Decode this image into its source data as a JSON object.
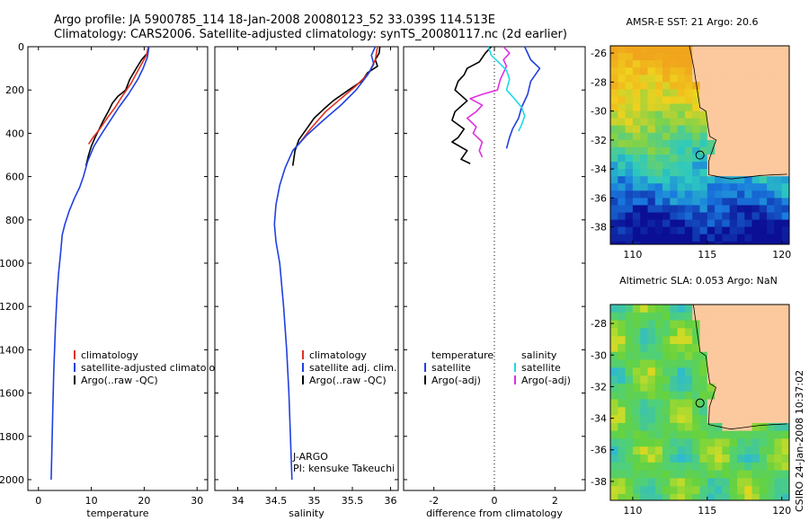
{
  "header": {
    "line1": "Argo profile: JA 5900785_114 18-Jan-2008 20080123_52 33.039S 114.513E",
    "line2": "Climatology: CARS2006. Satellite-adjusted climatology: synTS_20080117.nc (2d earlier)"
  },
  "side_text": "CSIRO 24-Jan-2008 10:37:02",
  "chart_data": [
    {
      "type": "line",
      "id": "temperature-panel",
      "xlabel": "temperature",
      "xlim": [
        -2,
        32
      ],
      "ylim": [
        0,
        2050
      ],
      "xticks": [
        0,
        10,
        20,
        30
      ],
      "yticks": [
        0,
        200,
        400,
        600,
        800,
        1000,
        1200,
        1400,
        1600,
        1800,
        2000
      ],
      "y_reversed": true,
      "legend": {
        "position": "lower-right",
        "entries": [
          {
            "label": "climatology",
            "color": "#e0301e"
          },
          {
            "label": "satellite-adjusted climatology",
            "color": "#2040e0"
          },
          {
            "label": "Argo(..raw -QC)",
            "color": "#000000"
          }
        ]
      },
      "series": [
        {
          "color": "#000000",
          "points": [
            [
              20.8,
              0
            ],
            [
              20.6,
              30
            ],
            [
              19.5,
              60
            ],
            [
              18.5,
              100
            ],
            [
              17.3,
              150
            ],
            [
              16.5,
              200
            ],
            [
              15.0,
              230
            ],
            [
              14.0,
              260
            ],
            [
              13.2,
              300
            ],
            [
              12.3,
              340
            ],
            [
              11.5,
              380
            ],
            [
              10.7,
              420
            ],
            [
              10.0,
              460
            ],
            [
              9.5,
              500
            ],
            [
              9.0,
              550
            ]
          ]
        },
        {
          "color": "#e0301e",
          "points": [
            [
              20.8,
              0
            ],
            [
              20.4,
              40
            ],
            [
              19.5,
              80
            ],
            [
              18.6,
              120
            ],
            [
              17.5,
              170
            ],
            [
              15.8,
              230
            ],
            [
              14.5,
              280
            ],
            [
              13.0,
              330
            ],
            [
              11.6,
              380
            ],
            [
              10.3,
              420
            ],
            [
              9.5,
              450
            ]
          ]
        },
        {
          "color": "#2040e0",
          "points": [
            [
              20.9,
              0
            ],
            [
              20.6,
              50
            ],
            [
              19.8,
              100
            ],
            [
              18.8,
              150
            ],
            [
              17.0,
              220
            ],
            [
              15.2,
              280
            ],
            [
              13.6,
              340
            ],
            [
              12.0,
              400
            ],
            [
              10.5,
              460
            ],
            [
              9.3,
              530
            ],
            [
              8.5,
              600
            ],
            [
              7.8,
              650
            ],
            [
              6.8,
              700
            ],
            [
              5.8,
              760
            ],
            [
              5.0,
              820
            ],
            [
              4.5,
              870
            ],
            [
              4.2,
              950
            ],
            [
              3.8,
              1050
            ],
            [
              3.5,
              1150
            ],
            [
              3.2,
              1300
            ],
            [
              2.9,
              1500
            ],
            [
              2.7,
              1700
            ],
            [
              2.5,
              1900
            ],
            [
              2.4,
              2000
            ]
          ]
        }
      ]
    },
    {
      "type": "line",
      "id": "salinity-panel",
      "xlabel": "salinity",
      "xlim": [
        33.7,
        36.1
      ],
      "ylim": [
        0,
        2050
      ],
      "xticks": [
        34,
        34.5,
        35,
        35.5,
        36
      ],
      "xtick_labels": [
        "34",
        "34.5",
        "35",
        "35.5",
        "36"
      ],
      "y_reversed": true,
      "annotation": [
        "J-ARGO",
        "PI: kensuke Takeuchi"
      ],
      "legend": {
        "position": "lower-right",
        "entries": [
          {
            "label": "climatology",
            "color": "#e0301e"
          },
          {
            "label": "satellite adj. clim.",
            "color": "#2040e0"
          },
          {
            "label": "Argo(..raw -QC)",
            "color": "#000000"
          }
        ]
      },
      "series": [
        {
          "color": "#000000",
          "points": [
            [
              35.86,
              0
            ],
            [
              35.85,
              30
            ],
            [
              35.8,
              60
            ],
            [
              35.83,
              90
            ],
            [
              35.7,
              120
            ],
            [
              35.62,
              160
            ],
            [
              35.45,
              200
            ],
            [
              35.25,
              250
            ],
            [
              35.12,
              290
            ],
            [
              35.0,
              330
            ],
            [
              34.9,
              380
            ],
            [
              34.8,
              430
            ],
            [
              34.75,
              480
            ],
            [
              34.72,
              550
            ]
          ]
        },
        {
          "color": "#e0301e",
          "points": [
            [
              35.83,
              0
            ],
            [
              35.8,
              60
            ],
            [
              35.72,
              120
            ],
            [
              35.55,
              180
            ],
            [
              35.35,
              240
            ],
            [
              35.15,
              300
            ],
            [
              34.95,
              380
            ],
            [
              34.8,
              450
            ]
          ]
        },
        {
          "color": "#2040e0",
          "points": [
            [
              35.8,
              0
            ],
            [
              35.75,
              40
            ],
            [
              35.78,
              80
            ],
            [
              35.7,
              130
            ],
            [
              35.55,
              200
            ],
            [
              35.35,
              270
            ],
            [
              35.12,
              340
            ],
            [
              34.9,
              410
            ],
            [
              34.72,
              480
            ],
            [
              34.62,
              560
            ],
            [
              34.55,
              640
            ],
            [
              34.5,
              730
            ],
            [
              34.48,
              820
            ],
            [
              34.5,
              900
            ],
            [
              34.55,
              1000
            ],
            [
              34.6,
              1200
            ],
            [
              34.64,
              1400
            ],
            [
              34.67,
              1600
            ],
            [
              34.69,
              1800
            ],
            [
              34.71,
              2000
            ]
          ]
        }
      ]
    },
    {
      "type": "line",
      "id": "difference-panel",
      "xlabel": "difference from climatology",
      "xlim": [
        -3,
        3
      ],
      "ylim": [
        0,
        2050
      ],
      "xticks": [
        -2,
        0,
        2
      ],
      "y_reversed": true,
      "zero_line": "dotted",
      "legend": {
        "position": "lower-center",
        "entries": [
          {
            "label": "temperature",
            "color": null
          },
          {
            "label": "satellite",
            "color": "#2040e0"
          },
          {
            "label": "Argo(-adj)",
            "color": "#000000"
          },
          {
            "label": "salinity",
            "color": null
          },
          {
            "label": "satellite",
            "color": "#20d8e8"
          },
          {
            "label": "Argo(-adj)",
            "color": "#e030e0"
          }
        ]
      },
      "series": [
        {
          "color": "#000000",
          "points": [
            [
              -0.1,
              0
            ],
            [
              -0.3,
              30
            ],
            [
              -0.5,
              70
            ],
            [
              -0.9,
              100
            ],
            [
              -1.0,
              130
            ],
            [
              -1.2,
              160
            ],
            [
              -1.3,
              200
            ],
            [
              -0.9,
              250
            ],
            [
              -1.3,
              300
            ],
            [
              -1.4,
              340
            ],
            [
              -1.0,
              380
            ],
            [
              -1.2,
              420
            ],
            [
              -1.4,
              440
            ],
            [
              -0.9,
              480
            ],
            [
              -1.1,
              520
            ],
            [
              -0.8,
              540
            ]
          ]
        },
        {
          "color": "#e030e0",
          "points": [
            [
              0.3,
              0
            ],
            [
              0.5,
              30
            ],
            [
              0.3,
              60
            ],
            [
              0.4,
              90
            ],
            [
              0.2,
              150
            ],
            [
              0.1,
              200
            ],
            [
              -0.4,
              220
            ],
            [
              -0.8,
              240
            ],
            [
              -0.4,
              270
            ],
            [
              -0.6,
              300
            ],
            [
              -0.9,
              330
            ],
            [
              -0.6,
              370
            ],
            [
              -0.7,
              400
            ],
            [
              -0.4,
              440
            ],
            [
              -0.5,
              480
            ],
            [
              -0.4,
              510
            ]
          ]
        },
        {
          "color": "#2040e0",
          "points": [
            [
              1.0,
              0
            ],
            [
              1.2,
              60
            ],
            [
              1.5,
              100
            ],
            [
              1.2,
              160
            ],
            [
              1.1,
              220
            ],
            [
              0.9,
              280
            ],
            [
              0.8,
              330
            ],
            [
              0.6,
              380
            ],
            [
              0.5,
              420
            ],
            [
              0.4,
              470
            ]
          ]
        },
        {
          "color": "#20d8e8",
          "points": [
            [
              -0.2,
              0
            ],
            [
              -0.1,
              40
            ],
            [
              0.2,
              80
            ],
            [
              0.4,
              110
            ],
            [
              0.5,
              150
            ],
            [
              0.4,
              200
            ],
            [
              0.6,
              230
            ],
            [
              0.9,
              280
            ],
            [
              1.0,
              320
            ],
            [
              0.9,
              360
            ],
            [
              0.8,
              390
            ]
          ]
        }
      ]
    }
  ],
  "maps": [
    {
      "id": "sst-map",
      "title": "AMSR-E SST: 21 Argo: 20.6",
      "xticks": [
        110,
        115,
        120
      ],
      "yticks": [
        -26,
        -28,
        -30,
        -32,
        -34,
        -36,
        -38
      ],
      "xlim": [
        108.5,
        120.5
      ],
      "ylim": [
        -39.2,
        -25.5
      ],
      "float_position": [
        114.513,
        -33.039
      ],
      "palette": {
        "land": "#fbc99d",
        "cold": "#0b0f95",
        "mid": "#2dc9c0",
        "warm": "#f0a51c"
      }
    },
    {
      "id": "sla-map",
      "title": "Altimetric SLA: 0.053 Argo: NaN",
      "xticks": [
        110,
        115,
        120
      ],
      "yticks": [
        -28,
        -30,
        -32,
        -34,
        -36,
        -38
      ],
      "xlim": [
        108.5,
        120.5
      ],
      "ylim": [
        -39.2,
        -26.8
      ],
      "float_position": [
        114.513,
        -33.039
      ],
      "palette": {
        "land": "#fbc99d",
        "low": "#27b6e0",
        "mid": "#66d23e",
        "high": "#f0d018"
      }
    }
  ]
}
